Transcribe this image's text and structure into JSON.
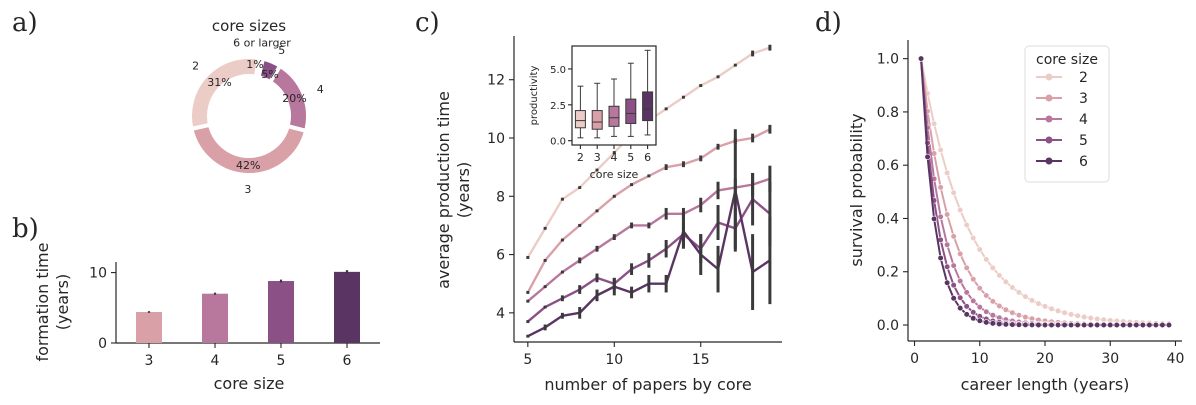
{
  "colors": {
    "c2": "#ecccc6",
    "c3": "#d9a0a8",
    "c4": "#b8779d",
    "c5": "#8b5187",
    "c6": "#5a3563",
    "err": "#3a3a3a",
    "text": "#262626"
  },
  "chart_data": [
    {
      "panel": "a)",
      "type": "pie",
      "title": "core sizes",
      "labels": [
        "2",
        "3",
        "4",
        "5",
        "6 or larger"
      ],
      "percent_labels": [
        "31%",
        "42%",
        "20%",
        "5%",
        "1%"
      ],
      "values": [
        31,
        42,
        20,
        5,
        1
      ]
    },
    {
      "panel": "b)",
      "type": "bar",
      "xlabel": "core size",
      "ylabel": "formation time (years)",
      "ylabel_lines": [
        "formation time",
        "(years)"
      ],
      "categories": [
        "3",
        "4",
        "5",
        "6"
      ],
      "values": [
        4.4,
        7.0,
        8.8,
        10.1
      ],
      "errors": [
        0.12,
        0.15,
        0.2,
        0.25
      ],
      "ylim": [
        0,
        11.5
      ],
      "yticks": [
        "0",
        "10"
      ]
    },
    {
      "panel": "c)",
      "type": "line",
      "xlabel": "number of papers by core",
      "ylabel": "average production time (years)",
      "ylabel_lines": [
        "average production time",
        "(years)"
      ],
      "xlim": [
        4.2,
        19.7
      ],
      "ylim": [
        3.0,
        13.5
      ],
      "xticks": [
        "5",
        "10",
        "15"
      ],
      "yticks": [
        "4",
        "6",
        "8",
        "10",
        "12"
      ],
      "x": [
        5,
        6,
        7,
        8,
        9,
        10,
        11,
        12,
        13,
        14,
        15,
        16,
        17,
        18,
        19
      ],
      "series": [
        {
          "name": "2",
          "values": [
            5.9,
            6.9,
            7.9,
            8.3,
            8.9,
            9.5,
            10.1,
            10.6,
            11.0,
            11.4,
            11.8,
            12.1,
            12.5,
            12.9,
            13.1
          ],
          "errors": [
            0.05,
            0.05,
            0.05,
            0.05,
            0.05,
            0.05,
            0.05,
            0.05,
            0.05,
            0.05,
            0.05,
            0.05,
            0.05,
            0.1,
            0.1
          ]
        },
        {
          "name": "3",
          "values": [
            4.7,
            5.8,
            6.5,
            7.0,
            7.5,
            8.0,
            8.4,
            8.7,
            9.0,
            9.1,
            9.3,
            9.7,
            9.9,
            10.0,
            10.3
          ],
          "errors": [
            0.05,
            0.05,
            0.05,
            0.05,
            0.05,
            0.05,
            0.05,
            0.05,
            0.1,
            0.1,
            0.1,
            0.1,
            0.1,
            0.15,
            0.15
          ]
        },
        {
          "name": "4",
          "values": [
            4.4,
            4.9,
            5.4,
            5.8,
            6.2,
            6.6,
            7.0,
            7.0,
            7.4,
            7.4,
            7.7,
            8.2,
            8.3,
            8.4,
            8.6
          ],
          "errors": [
            0.05,
            0.05,
            0.05,
            0.1,
            0.1,
            0.1,
            0.1,
            0.1,
            0.2,
            0.2,
            0.25,
            0.3,
            0.3,
            0.4,
            0.45
          ]
        },
        {
          "name": "5",
          "values": [
            3.7,
            4.2,
            4.5,
            4.8,
            5.2,
            5.0,
            5.5,
            5.8,
            6.2,
            6.7,
            6.2,
            7.1,
            6.9,
            7.9,
            7.4
          ],
          "errors": [
            0.05,
            0.05,
            0.1,
            0.15,
            0.15,
            0.2,
            0.2,
            0.25,
            0.3,
            0.4,
            0.5,
            0.6,
            0.7,
            0.9,
            1.1
          ]
        },
        {
          "name": "6",
          "values": [
            3.2,
            3.5,
            3.9,
            4.0,
            4.6,
            4.9,
            4.7,
            5.0,
            5.0,
            6.8,
            6.0,
            5.5,
            8.2,
            5.4,
            5.8
          ],
          "errors": [
            0.05,
            0.1,
            0.1,
            0.2,
            0.2,
            0.3,
            0.2,
            0.3,
            0.3,
            0.6,
            0.7,
            0.8,
            2.1,
            1.3,
            1.5
          ]
        }
      ],
      "inset": {
        "type": "box",
        "ylabel": "productivity",
        "xlabel": "core size",
        "categories": [
          "2",
          "3",
          "4",
          "5",
          "6"
        ],
        "ylim": [
          -0.3,
          6.6
        ],
        "yticks": [
          "0.0",
          "2.5",
          "5.0"
        ],
        "boxes": [
          {
            "whisker_low": 0.2,
            "q1": 0.9,
            "median": 1.4,
            "q3": 2.1,
            "whisker_high": 3.8
          },
          {
            "whisker_low": 0.2,
            "q1": 0.8,
            "median": 1.3,
            "q3": 2.1,
            "whisker_high": 4.0
          },
          {
            "whisker_low": 0.3,
            "q1": 1.0,
            "median": 1.6,
            "q3": 2.4,
            "whisker_high": 4.3
          },
          {
            "whisker_low": 0.3,
            "q1": 1.2,
            "median": 1.9,
            "q3": 2.9,
            "whisker_high": 5.4
          },
          {
            "whisker_low": 0.4,
            "q1": 1.4,
            "median": 2.2,
            "q3": 3.4,
            "whisker_high": 6.3
          }
        ]
      }
    },
    {
      "panel": "d)",
      "type": "line",
      "xlabel": "career length (years)",
      "ylabel": "survival probability",
      "xlim": [
        -1,
        41
      ],
      "ylim": [
        -0.06,
        1.07
      ],
      "xticks": [
        "0",
        "10",
        "20",
        "30",
        "40"
      ],
      "yticks": [
        "0.0",
        "0.2",
        "0.4",
        "0.6",
        "0.8",
        "1.0"
      ],
      "legend_title": "core size",
      "legend_position": "top-right",
      "x_start": 1,
      "x_end": 39,
      "series": [
        {
          "name": "2",
          "decay_rate": 0.14
        },
        {
          "name": "3",
          "decay_rate": 0.22
        },
        {
          "name": "4",
          "decay_rate": 0.3
        },
        {
          "name": "5",
          "decay_rate": 0.38
        },
        {
          "name": "6",
          "decay_rate": 0.46
        }
      ]
    }
  ]
}
